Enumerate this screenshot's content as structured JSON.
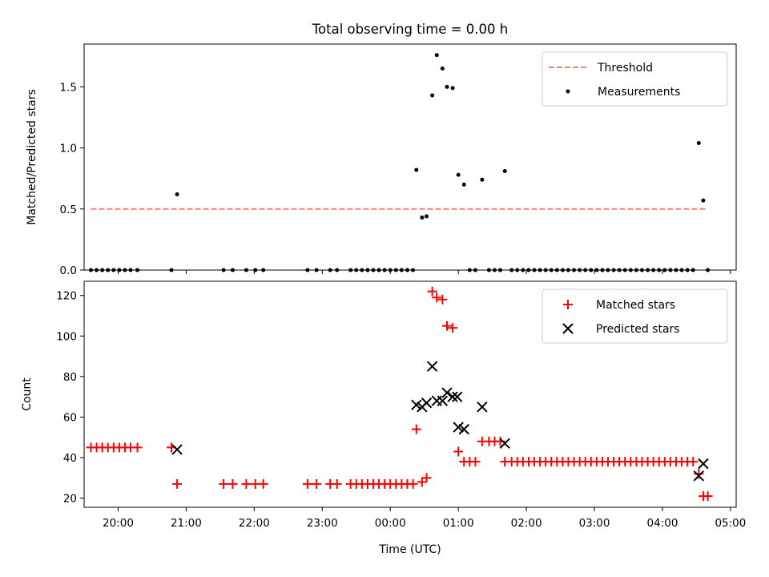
{
  "chart_data": [
    {
      "type": "scatter",
      "title": "Total observing time = 0.00 h",
      "xlabel": "",
      "ylabel": "Matched/Predicted stars",
      "ylim": [
        0,
        1.85
      ],
      "xlim": [
        "19:30",
        "05:05"
      ],
      "grid": false,
      "legend_position": "top-right",
      "yticks": [
        "0.0",
        "0.5",
        "1.0",
        "1.5"
      ],
      "threshold": {
        "name": "Threshold",
        "value": 0.5,
        "x_start": "19:36",
        "x_end": "04:40",
        "color": "#ff7f7f",
        "style": "dashed"
      },
      "series": [
        {
          "name": "Measurements",
          "color": "#000000",
          "marker": "dot",
          "points": [
            [
              "19:36",
              0
            ],
            [
              "19:41",
              0
            ],
            [
              "19:46",
              0
            ],
            [
              "19:51",
              0
            ],
            [
              "19:56",
              0
            ],
            [
              "20:01",
              0
            ],
            [
              "20:06",
              0
            ],
            [
              "20:11",
              0
            ],
            [
              "20:17",
              0
            ],
            [
              "20:47",
              0
            ],
            [
              "20:52",
              0.62
            ],
            [
              "21:33",
              0
            ],
            [
              "21:41",
              0
            ],
            [
              "21:53",
              0
            ],
            [
              "22:01",
              0
            ],
            [
              "22:08",
              0
            ],
            [
              "22:47",
              0
            ],
            [
              "22:55",
              0
            ],
            [
              "23:07",
              0
            ],
            [
              "23:13",
              0
            ],
            [
              "23:25",
              0
            ],
            [
              "23:30",
              0
            ],
            [
              "23:35",
              0
            ],
            [
              "23:40",
              0
            ],
            [
              "23:45",
              0
            ],
            [
              "23:50",
              0
            ],
            [
              "23:55",
              0
            ],
            [
              "00:00",
              0
            ],
            [
              "00:05",
              0
            ],
            [
              "00:10",
              0
            ],
            [
              "00:15",
              0
            ],
            [
              "00:20",
              0
            ],
            [
              "00:23",
              0.82
            ],
            [
              "00:28",
              0.43
            ],
            [
              "00:32",
              0.44
            ],
            [
              "00:37",
              1.43
            ],
            [
              "00:41",
              1.76
            ],
            [
              "00:46",
              1.65
            ],
            [
              "00:50",
              1.5
            ],
            [
              "00:55",
              1.49
            ],
            [
              "01:00",
              0.78
            ],
            [
              "01:05",
              0.7
            ],
            [
              "01:10",
              0
            ],
            [
              "01:15",
              0
            ],
            [
              "01:21",
              0.74
            ],
            [
              "01:27",
              0
            ],
            [
              "01:32",
              0
            ],
            [
              "01:37",
              0
            ],
            [
              "01:41",
              0.81
            ],
            [
              "01:47",
              0
            ],
            [
              "01:52",
              0
            ],
            [
              "01:57",
              0
            ],
            [
              "02:02",
              0
            ],
            [
              "02:07",
              0
            ],
            [
              "02:12",
              0
            ],
            [
              "02:17",
              0
            ],
            [
              "02:22",
              0
            ],
            [
              "02:27",
              0
            ],
            [
              "02:32",
              0
            ],
            [
              "02:37",
              0
            ],
            [
              "02:42",
              0
            ],
            [
              "02:47",
              0
            ],
            [
              "02:52",
              0
            ],
            [
              "02:57",
              0
            ],
            [
              "03:02",
              0
            ],
            [
              "03:07",
              0
            ],
            [
              "03:12",
              0
            ],
            [
              "03:17",
              0
            ],
            [
              "03:22",
              0
            ],
            [
              "03:27",
              0
            ],
            [
              "03:32",
              0
            ],
            [
              "03:37",
              0
            ],
            [
              "03:42",
              0
            ],
            [
              "03:47",
              0
            ],
            [
              "03:52",
              0
            ],
            [
              "03:57",
              0
            ],
            [
              "04:02",
              0
            ],
            [
              "04:07",
              0
            ],
            [
              "04:12",
              0
            ],
            [
              "04:17",
              0
            ],
            [
              "04:22",
              0
            ],
            [
              "04:27",
              0
            ],
            [
              "04:32",
              1.04
            ],
            [
              "04:36",
              0.57
            ],
            [
              "04:40",
              0
            ]
          ]
        }
      ]
    },
    {
      "type": "scatter",
      "title": "",
      "xlabel": "Time (UTC)",
      "ylabel": "Count",
      "ylim": [
        15.5,
        127
      ],
      "xlim": [
        "19:30",
        "05:05"
      ],
      "grid": false,
      "legend_position": "top-right",
      "xticks": [
        "20:00",
        "21:00",
        "22:00",
        "23:00",
        "00:00",
        "01:00",
        "02:00",
        "03:00",
        "04:00",
        "05:00"
      ],
      "yticks": [
        "20",
        "40",
        "60",
        "80",
        "100",
        "120"
      ],
      "series": [
        {
          "name": "Matched stars",
          "color": "#ff0000",
          "marker": "plus",
          "points": [
            [
              "19:36",
              45
            ],
            [
              "19:41",
              45
            ],
            [
              "19:46",
              45
            ],
            [
              "19:51",
              45
            ],
            [
              "19:56",
              45
            ],
            [
              "20:01",
              45
            ],
            [
              "20:06",
              45
            ],
            [
              "20:11",
              45
            ],
            [
              "20:17",
              45
            ],
            [
              "20:47",
              45
            ],
            [
              "20:52",
              27
            ],
            [
              "21:33",
              27
            ],
            [
              "21:41",
              27
            ],
            [
              "21:53",
              27
            ],
            [
              "22:01",
              27
            ],
            [
              "22:08",
              27
            ],
            [
              "22:47",
              27
            ],
            [
              "22:55",
              27
            ],
            [
              "23:07",
              27
            ],
            [
              "23:13",
              27
            ],
            [
              "23:25",
              27
            ],
            [
              "23:30",
              27
            ],
            [
              "23:35",
              27
            ],
            [
              "23:40",
              27
            ],
            [
              "23:45",
              27
            ],
            [
              "23:50",
              27
            ],
            [
              "23:55",
              27
            ],
            [
              "00:00",
              27
            ],
            [
              "00:05",
              27
            ],
            [
              "00:10",
              27
            ],
            [
              "00:15",
              27
            ],
            [
              "00:20",
              27
            ],
            [
              "00:23",
              54
            ],
            [
              "00:28",
              28
            ],
            [
              "00:32",
              30
            ],
            [
              "00:37",
              122
            ],
            [
              "00:41",
              119
            ],
            [
              "00:46",
              118
            ],
            [
              "00:50",
              105
            ],
            [
              "00:55",
              104
            ],
            [
              "01:00",
              43
            ],
            [
              "01:05",
              38
            ],
            [
              "01:10",
              38
            ],
            [
              "01:15",
              38
            ],
            [
              "01:21",
              48
            ],
            [
              "01:27",
              48
            ],
            [
              "01:32",
              48
            ],
            [
              "01:37",
              48
            ],
            [
              "01:41",
              38
            ],
            [
              "01:47",
              38
            ],
            [
              "01:52",
              38
            ],
            [
              "01:57",
              38
            ],
            [
              "02:02",
              38
            ],
            [
              "02:07",
              38
            ],
            [
              "02:12",
              38
            ],
            [
              "02:17",
              38
            ],
            [
              "02:22",
              38
            ],
            [
              "02:27",
              38
            ],
            [
              "02:32",
              38
            ],
            [
              "02:37",
              38
            ],
            [
              "02:42",
              38
            ],
            [
              "02:47",
              38
            ],
            [
              "02:52",
              38
            ],
            [
              "02:57",
              38
            ],
            [
              "03:02",
              38
            ],
            [
              "03:07",
              38
            ],
            [
              "03:12",
              38
            ],
            [
              "03:17",
              38
            ],
            [
              "03:22",
              38
            ],
            [
              "03:27",
              38
            ],
            [
              "03:32",
              38
            ],
            [
              "03:37",
              38
            ],
            [
              "03:42",
              38
            ],
            [
              "03:47",
              38
            ],
            [
              "03:52",
              38
            ],
            [
              "03:57",
              38
            ],
            [
              "04:02",
              38
            ],
            [
              "04:07",
              38
            ],
            [
              "04:12",
              38
            ],
            [
              "04:17",
              38
            ],
            [
              "04:22",
              38
            ],
            [
              "04:27",
              38
            ],
            [
              "04:32",
              32
            ],
            [
              "04:36",
              21
            ],
            [
              "04:40",
              21
            ]
          ]
        },
        {
          "name": "Predicted stars",
          "color": "#000000",
          "marker": "x",
          "points": [
            [
              "20:52",
              44
            ],
            [
              "00:23",
              66
            ],
            [
              "00:28",
              65
            ],
            [
              "00:32",
              67
            ],
            [
              "00:37",
              85
            ],
            [
              "00:41",
              68
            ],
            [
              "00:46",
              68
            ],
            [
              "00:50",
              72
            ],
            [
              "00:55",
              70
            ],
            [
              "00:59",
              70
            ],
            [
              "01:00",
              55
            ],
            [
              "01:05",
              54
            ],
            [
              "01:21",
              65
            ],
            [
              "01:41",
              47
            ],
            [
              "04:32",
              31
            ],
            [
              "04:36",
              37
            ]
          ]
        }
      ]
    }
  ]
}
